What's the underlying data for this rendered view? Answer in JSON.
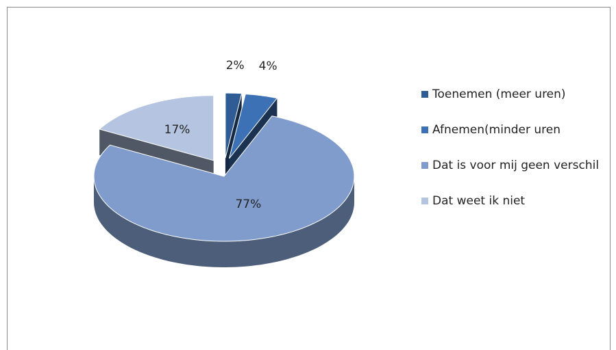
{
  "chart_data": {
    "type": "pie",
    "categories": [
      "Toenemen (meer uren)",
      "Afnemen(minder uren",
      "Dat is voor mij geen verschil",
      "Dat weet ik niet"
    ],
    "values": [
      2,
      4,
      77,
      17
    ],
    "value_labels": [
      "2%",
      "4%",
      "77%",
      "17%"
    ],
    "colors": [
      "#2f5c94",
      "#3d71b5",
      "#7f9ccc",
      "#b5c4e0"
    ],
    "exploded": [
      true,
      true,
      false,
      true
    ],
    "legend": "right"
  }
}
